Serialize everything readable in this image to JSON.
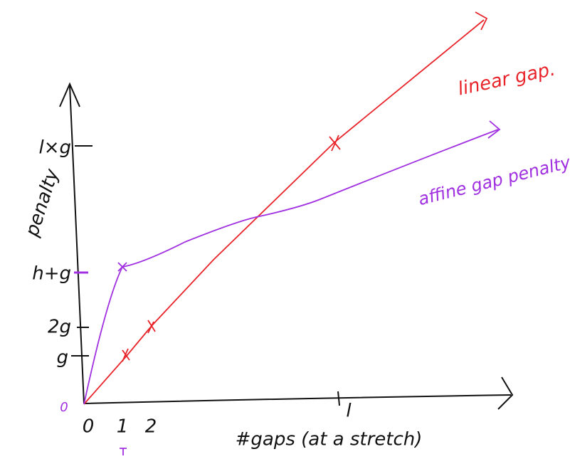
{
  "y_axis": {
    "label": "penalty",
    "ticks": [
      "l×g",
      "h+g",
      "2g",
      "g",
      "0"
    ]
  },
  "x_axis": {
    "label": "#gaps (at a stretch)",
    "ticks": [
      "0",
      "1",
      "2",
      "l"
    ]
  },
  "annotations": {
    "linear": "linear gap.",
    "affine": "affine gap penalty"
  }
}
